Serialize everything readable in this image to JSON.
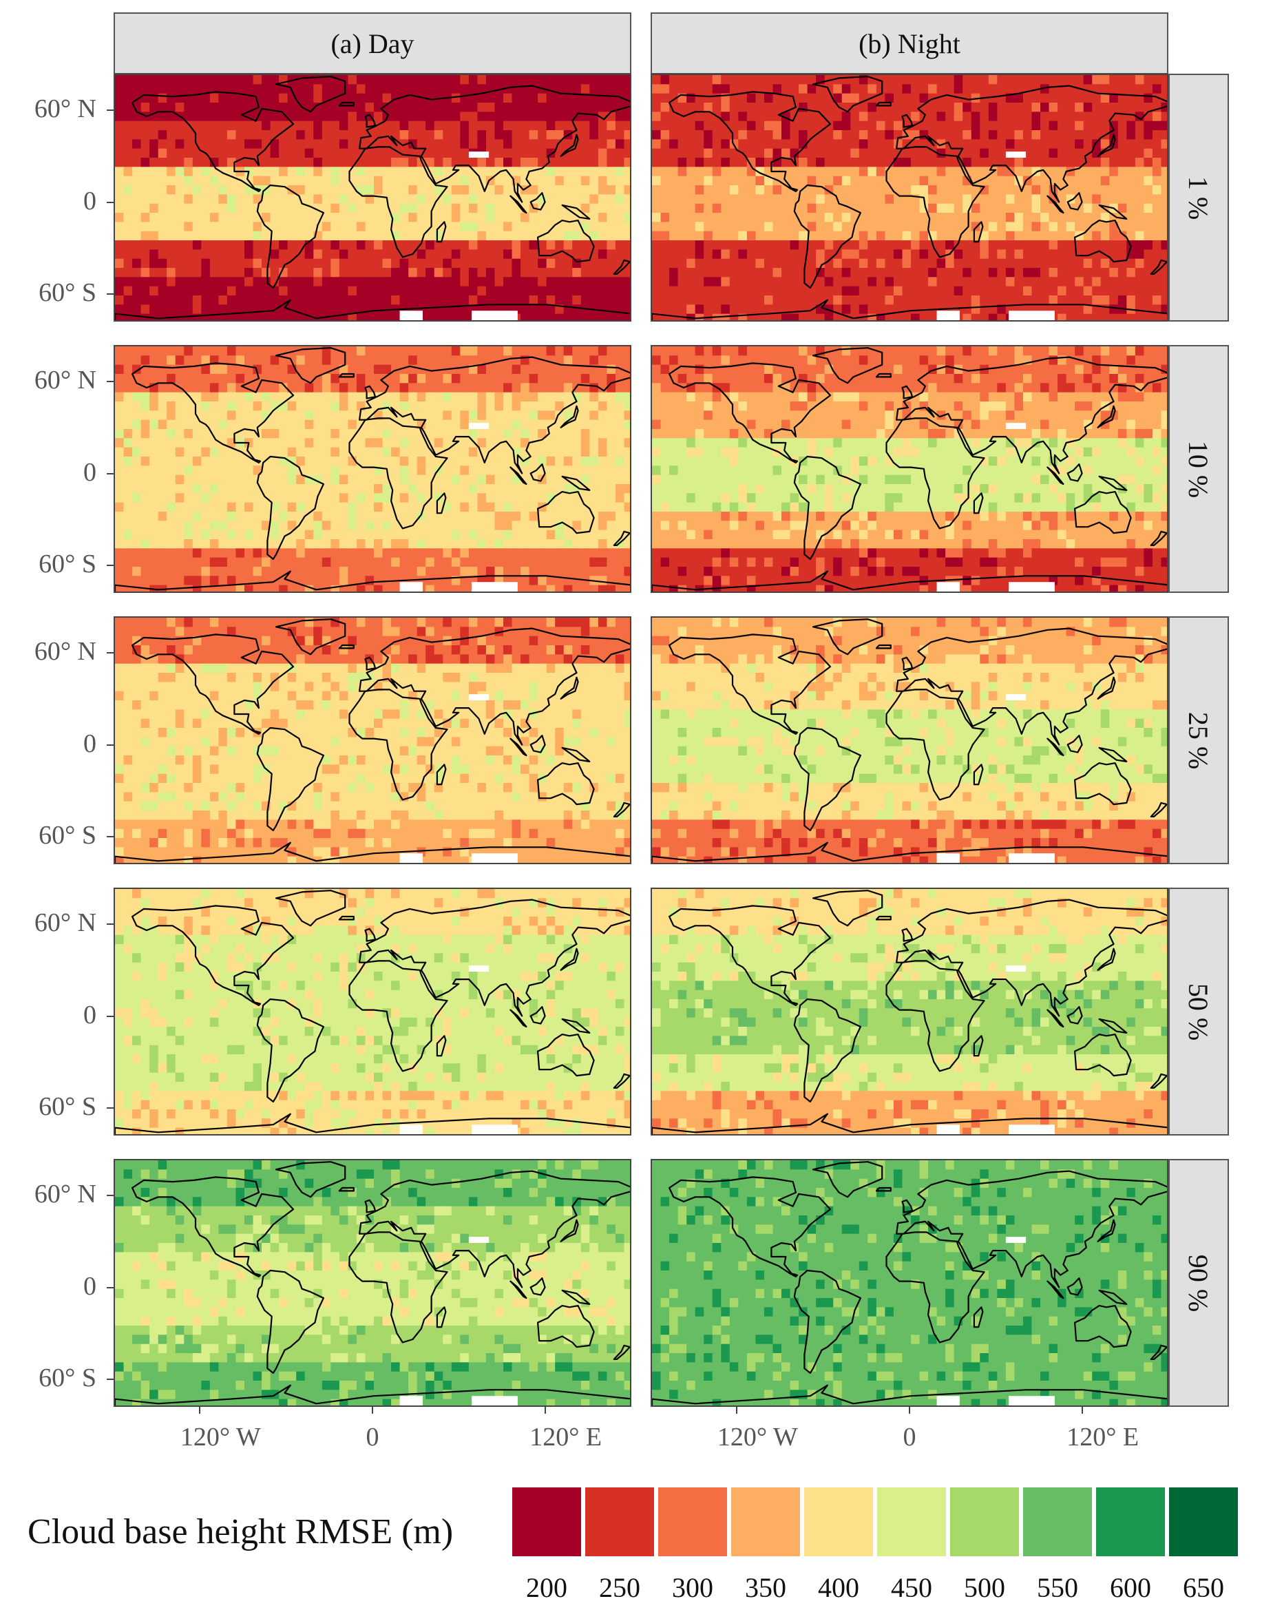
{
  "column_headers": [
    "(a) Day",
    "(b) Night"
  ],
  "row_headers": [
    "1 %",
    "10 %",
    "25 %",
    "50 %",
    "90 %"
  ],
  "y_axis_labels": [
    {
      "lat": 60,
      "text": "60°  N"
    },
    {
      "lat": 0,
      "text": "0"
    },
    {
      "lat": -60,
      "text": "60°  S"
    }
  ],
  "x_axis_labels": [
    {
      "lon": -120,
      "text": "120°  W"
    },
    {
      "lon": 0,
      "text": "0"
    },
    {
      "lon": 120,
      "text": "120°  E"
    }
  ],
  "legend": {
    "title": "Cloud base height RMSE (m)",
    "labels": [
      "200",
      "250",
      "300",
      "350",
      "400",
      "450",
      "500",
      "550",
      "600",
      "650"
    ],
    "colors": [
      "#a50026",
      "#d73027",
      "#f46d43",
      "#fdae61",
      "#fee08b",
      "#d9ef8b",
      "#a6d96a",
      "#66bd63",
      "#1a9850",
      "#006837"
    ]
  },
  "map_extent": {
    "lon": [
      -180,
      180
    ],
    "lat": [
      -78,
      84
    ]
  },
  "panels_description_note": "",
  "panel_base_values": {
    "day": [
      [
        200,
        250,
        400,
        250,
        200
      ],
      [
        300,
        400,
        400,
        400,
        300
      ],
      [
        300,
        400,
        400,
        400,
        350
      ],
      [
        400,
        450,
        450,
        450,
        400
      ],
      [
        550,
        500,
        450,
        500,
        550
      ]
    ],
    "night": [
      [
        250,
        250,
        350,
        250,
        250
      ],
      [
        300,
        350,
        450,
        350,
        250
      ],
      [
        350,
        400,
        450,
        400,
        300
      ],
      [
        400,
        450,
        500,
        450,
        350
      ],
      [
        550,
        550,
        550,
        550,
        550
      ]
    ]
  }
}
